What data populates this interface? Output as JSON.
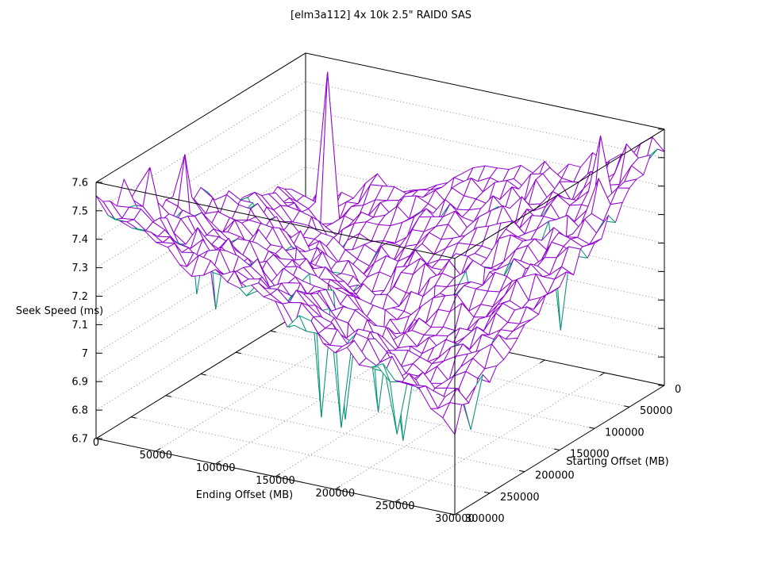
{
  "chart_data": {
    "type": "surface3d-wireframe",
    "title": "[elm3a112] 4x 10k 2.5\" RAID0 SAS",
    "xlabel": "Ending Offset (MB)",
    "ylabel": "Starting Offset (MB)",
    "zlabel": "Seek Speed (ms)",
    "x_range": [
      0,
      300000
    ],
    "y_range": [
      0,
      300000
    ],
    "z_range": [
      6.7,
      7.6
    ],
    "x_tick_labels": [
      "0",
      "50000",
      "100000",
      "150000",
      "200000",
      "250000",
      "300000"
    ],
    "y_tick_labels": [
      "0",
      "50000",
      "100000",
      "150000",
      "200000",
      "250000",
      "300000"
    ],
    "z_tick_labels": [
      "6.7",
      "6.8",
      "6.9",
      "7",
      "7.1",
      "7.2",
      "7.3",
      "7.4",
      "7.5",
      "7.6"
    ],
    "grid_on": true,
    "legend": "none",
    "surface_color": "#9400d3",
    "underside_color": "#009e73",
    "grid_color": "#8a8a8a",
    "border_color": "#000000",
    "z_values": [
      [
        7.08,
        7.13,
        7.2,
        7.22,
        7.28,
        7.32,
        7.34,
        7.39,
        7.43,
        7.5,
        7.56
      ],
      [
        7.15,
        7.07,
        7.13,
        7.18,
        7.22,
        7.28,
        7.3,
        7.35,
        7.37,
        7.44,
        7.5
      ],
      [
        7.18,
        7.15,
        7.05,
        7.14,
        7.17,
        7.24,
        7.26,
        7.31,
        7.35,
        7.36,
        7.44
      ],
      [
        7.25,
        7.16,
        7.14,
        7.06,
        7.11,
        7.19,
        7.23,
        7.26,
        7.31,
        7.34,
        7.36
      ],
      [
        7.27,
        7.24,
        7.17,
        7.13,
        7.04,
        7.11,
        7.18,
        7.21,
        7.27,
        7.29,
        7.34
      ],
      [
        7.32,
        7.26,
        7.24,
        7.17,
        7.13,
        7.05,
        7.1,
        7.18,
        7.2,
        7.27,
        7.28
      ],
      [
        7.36,
        7.3,
        7.26,
        7.23,
        7.16,
        7.12,
        7.03,
        7.11,
        7.15,
        7.22,
        7.24
      ],
      [
        7.37,
        7.35,
        7.31,
        7.25,
        7.23,
        7.16,
        7.11,
        7.04,
        7.09,
        7.16,
        7.21
      ],
      [
        7.46,
        7.37,
        7.35,
        7.31,
        7.25,
        7.22,
        7.15,
        7.11,
        7.02,
        7.1,
        7.14
      ],
      [
        7.5,
        7.43,
        7.36,
        7.34,
        7.29,
        7.27,
        7.2,
        7.16,
        7.1,
        7.03,
        7.1
      ],
      [
        7.53,
        7.47,
        7.42,
        7.36,
        7.34,
        7.28,
        7.26,
        7.19,
        7.14,
        7.1,
        7.01
      ]
    ],
    "spikes": [
      {
        "i": 2,
        "j": 3,
        "z": 7.59,
        "dir": "up"
      },
      {
        "i": 19,
        "j": 1,
        "z": 7.54,
        "dir": "up"
      },
      {
        "i": 24,
        "j": 1,
        "z": 7.57,
        "dir": "up"
      },
      {
        "i": 26,
        "j": 0,
        "z": 7.55,
        "dir": "up"
      },
      {
        "i": 4,
        "j": 27,
        "z": 7.61,
        "dir": "up"
      },
      {
        "i": 2,
        "j": 28,
        "z": 7.56,
        "dir": "up"
      },
      {
        "i": 6,
        "j": 28,
        "z": 7.5,
        "dir": "up"
      },
      {
        "i": 19,
        "j": 2,
        "z": 7.06,
        "dir": "down"
      },
      {
        "i": 18,
        "j": 3,
        "z": 7.0,
        "dir": "down"
      },
      {
        "i": 20,
        "j": 13,
        "z": 6.74,
        "dir": "down"
      },
      {
        "i": 20,
        "j": 15,
        "z": 6.75,
        "dir": "down"
      },
      {
        "i": 17,
        "j": 16,
        "z": 6.74,
        "dir": "down"
      },
      {
        "i": 15,
        "j": 19,
        "z": 6.78,
        "dir": "down"
      },
      {
        "i": 13,
        "j": 22,
        "z": 7.0,
        "dir": "down"
      },
      {
        "i": 22,
        "j": 21,
        "z": 6.76,
        "dir": "down"
      },
      {
        "i": 16,
        "j": 8,
        "z": 6.95,
        "dir": "down"
      },
      {
        "i": 24,
        "j": 17,
        "z": 6.8,
        "dir": "down"
      },
      {
        "i": 28,
        "j": 24,
        "z": 6.9,
        "dir": "down"
      },
      {
        "i": 26,
        "j": 29,
        "z": 6.93,
        "dir": "down"
      },
      {
        "i": 8,
        "j": 26,
        "z": 6.98,
        "dir": "down"
      }
    ],
    "render": {
      "upsample": 3,
      "noise": 0.04
    }
  }
}
